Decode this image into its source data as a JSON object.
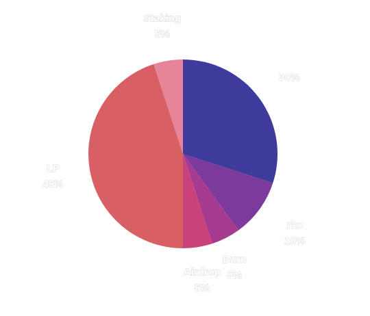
{
  "chart_data": {
    "type": "pie",
    "start_angle_deg": 0,
    "direction": "clockwise",
    "slices": [
      {
        "label": "",
        "value": 30,
        "pct_label": "30%",
        "color": "#3e3b9c"
      },
      {
        "label": "rko",
        "value": 10,
        "pct_label": "10%",
        "color": "#7b3a9c"
      },
      {
        "label": "Burn",
        "value": 5,
        "pct_label": "5%",
        "color": "#a73b8f"
      },
      {
        "label": "Airdrop",
        "value": 5,
        "pct_label": "5%",
        "color": "#c9437a"
      },
      {
        "label": "LP",
        "value": 45,
        "pct_label": "45%",
        "color": "#d86064"
      },
      {
        "label": "Staking",
        "value": 5,
        "pct_label": "5%",
        "color": "#e8849a"
      }
    ]
  }
}
